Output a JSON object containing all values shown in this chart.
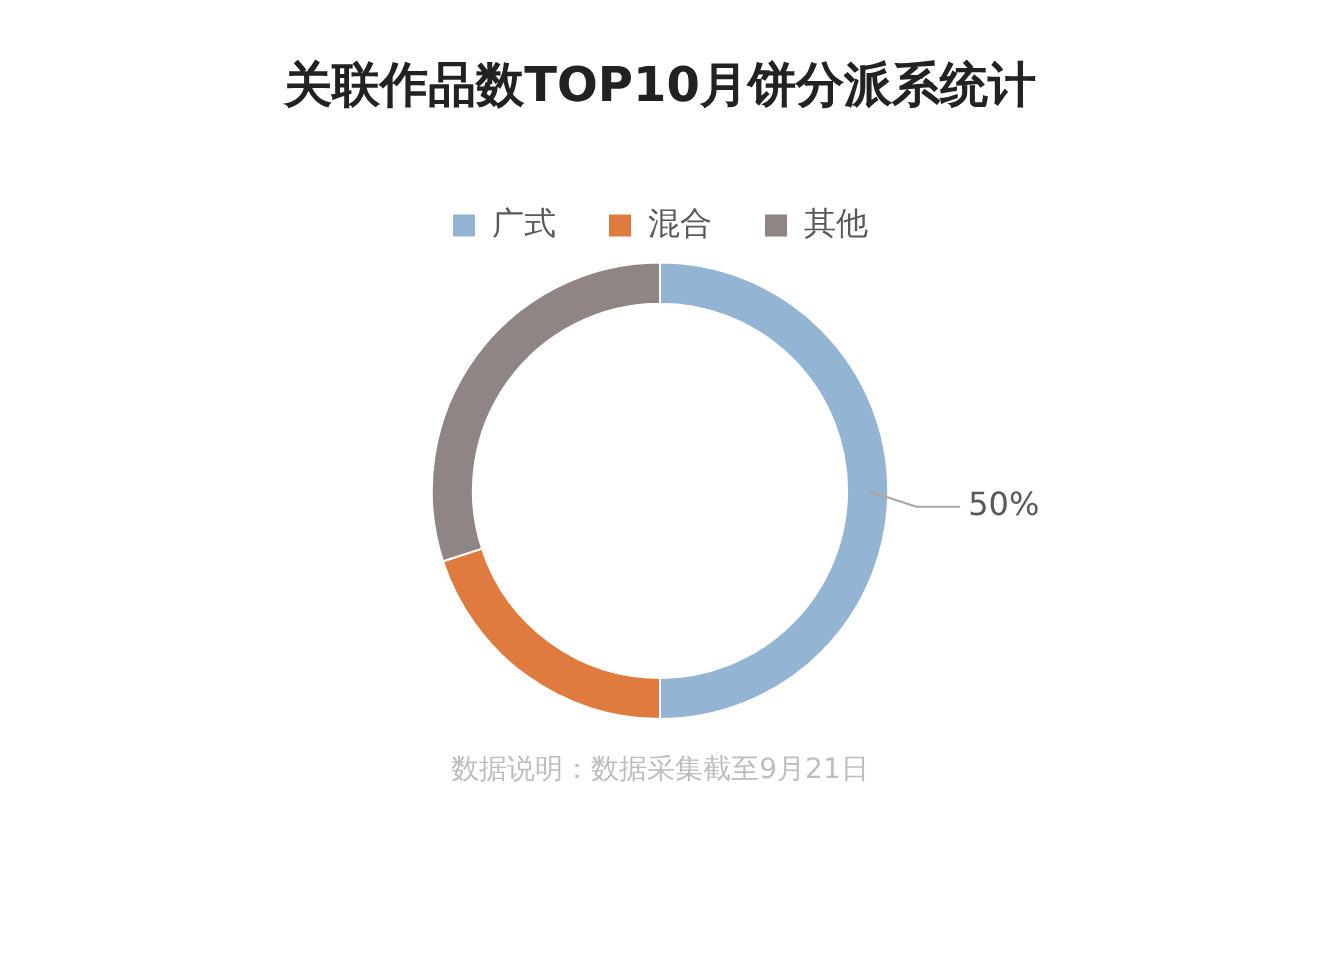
{
  "chart_data": {
    "type": "donut",
    "title": "关联作品数TOP10月饼分派系统计",
    "categories": [
      "广式",
      "混合",
      "其他"
    ],
    "values": [
      50,
      20,
      30
    ],
    "colors": [
      "#94b4d4",
      "#e07b3f",
      "#8f8584"
    ],
    "value_labels": [
      "50%",
      null,
      null
    ],
    "legend": "top",
    "annotations": [
      "数据说明：数据采集截至9月21日"
    ]
  }
}
